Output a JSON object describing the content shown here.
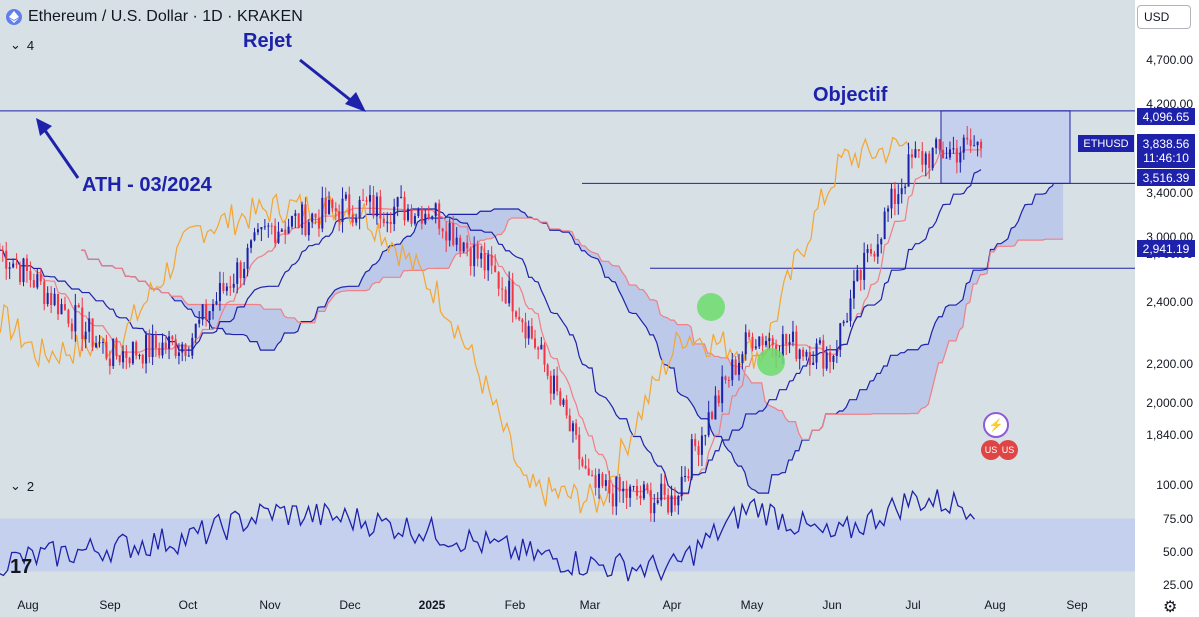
{
  "header": {
    "symbol_title": "Ethereum / U.S. Dollar · 1D · KRAKEN",
    "currency": "USD",
    "price_pane_label": "4",
    "osc_pane_label": "2"
  },
  "annotations": {
    "rejet": "Rejet",
    "objectif": "Objectif",
    "ath": "ATH - 03/2024"
  },
  "price_axis": {
    "ticks": [
      "4,700.00",
      "4,200.00",
      "3,400.00",
      "3,000.00",
      "2,700.00",
      "2,400.00",
      "2,200.00",
      "2,000.00",
      "1,840.00"
    ],
    "levels": [
      {
        "label": "4,096.65",
        "value": 4096.65
      },
      {
        "label": "3,516.39",
        "value": 3516.39
      },
      {
        "label": "2,941.19",
        "value": 2941.19
      }
    ],
    "symbol": "ETHUSD",
    "last_price": "3,838.56",
    "countdown": "11:46:10"
  },
  "osc_axis": {
    "ticks": [
      "100.00",
      "75.00",
      "50.00",
      "25.00"
    ]
  },
  "time_axis": {
    "ticks": [
      "Aug",
      "Sep",
      "Oct",
      "Nov",
      "Dec",
      "2025",
      "Feb",
      "Mar",
      "Apr",
      "May",
      "Jun",
      "Jul",
      "Aug",
      "Sep"
    ]
  },
  "colors": {
    "candle": "#1e22aa",
    "candle_down": "#f23645",
    "tenkan_red": "#f07f86",
    "kijun_blue": "#1e22aa",
    "chikou_orange": "#f5a531",
    "cloud_blue": "#b3c1e8",
    "cloud_red": "#e5d3da",
    "zone": "#c5d0ee",
    "marker": "#6cdc6c"
  },
  "chart_data": [
    {
      "type": "candlestick",
      "title": "Ethereum / U.S. Dollar · 1D · KRAKEN",
      "ylim": [
        1750,
        4900
      ],
      "y_scale": "log",
      "x": [
        "Aug",
        "Sep",
        "Oct",
        "Nov",
        "Dec",
        "2025",
        "Feb",
        "Mar",
        "Apr",
        "May",
        "Jun",
        "Jul",
        "Aug"
      ],
      "approx_monthly_close": [
        2520,
        2450,
        2520,
        3200,
        3350,
        3330,
        2750,
        1850,
        1800,
        2560,
        2450,
        3700,
        3838.56
      ],
      "horizontal_levels": [
        4096.65,
        3516.39,
        2941.19
      ],
      "target_zone": [
        3516.39,
        4096.65
      ],
      "last_price": 3838.56,
      "series": [
        {
          "values": [
            2520,
            2450,
            2520,
            3200,
            3350,
            3330,
            2750,
            1850,
            1800,
            2560,
            2450,
            3700,
            3838.56
          ]
        }
      ]
    },
    {
      "type": "line",
      "ylim": [
        20,
        100
      ],
      "band": [
        30,
        70
      ],
      "x": [
        "Aug",
        "Sep",
        "Oct",
        "Nov",
        "Dec",
        "2025",
        "Feb",
        "Mar",
        "Apr",
        "May",
        "Jun",
        "Jul",
        "Aug"
      ],
      "series": [
        {
          "values": [
            40,
            48,
            55,
            75,
            70,
            60,
            45,
            35,
            32,
            80,
            55,
            85,
            78
          ]
        }
      ]
    }
  ]
}
